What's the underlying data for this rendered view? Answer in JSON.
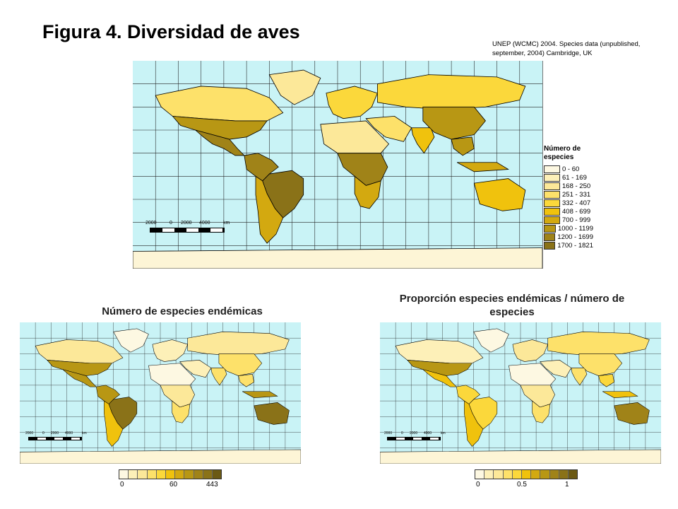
{
  "title": "Figura 4. Diversidad de aves",
  "source": "UNEP (WCMC) 2004. Species data (unpublished, september, 2004) Cambridge, UK",
  "colors": {
    "ocean": "#c9f3f6",
    "grid": "#222222",
    "ice": "#fdf5d6",
    "border": "#000000",
    "ramp": [
      "#fdf8e2",
      "#fdf0b8",
      "#fce899",
      "#fde16a",
      "#fbd83b",
      "#f0c20d",
      "#d3a910",
      "#b89714",
      "#a08318",
      "#8a7218",
      "#6b5914"
    ]
  },
  "main_map": {
    "legend_title": "Número de especies",
    "legend_items": [
      "0 - 60",
      "61 - 169",
      "168 - 250",
      "251 - 331",
      "332 - 407",
      "408 - 699",
      "700 - 999",
      "1000 - 1199",
      "1200 - 1699",
      "1700 - 1821"
    ],
    "scale_labels": [
      "2000",
      "0",
      "2000",
      "4000",
      "km"
    ]
  },
  "endemic_map": {
    "subtitle": "Número de especies endémicas",
    "scale_labels": [
      "2000",
      "0",
      "2000",
      "4000",
      "km"
    ],
    "ramp_labels": [
      "0",
      "60",
      "443"
    ]
  },
  "ratio_map": {
    "subtitle": "Proporción especies endémicas / número de especies",
    "scale_labels": [
      "2000",
      "0",
      "2000",
      "4000",
      "km"
    ],
    "ramp_labels": [
      "0",
      "0.5",
      "1"
    ]
  }
}
